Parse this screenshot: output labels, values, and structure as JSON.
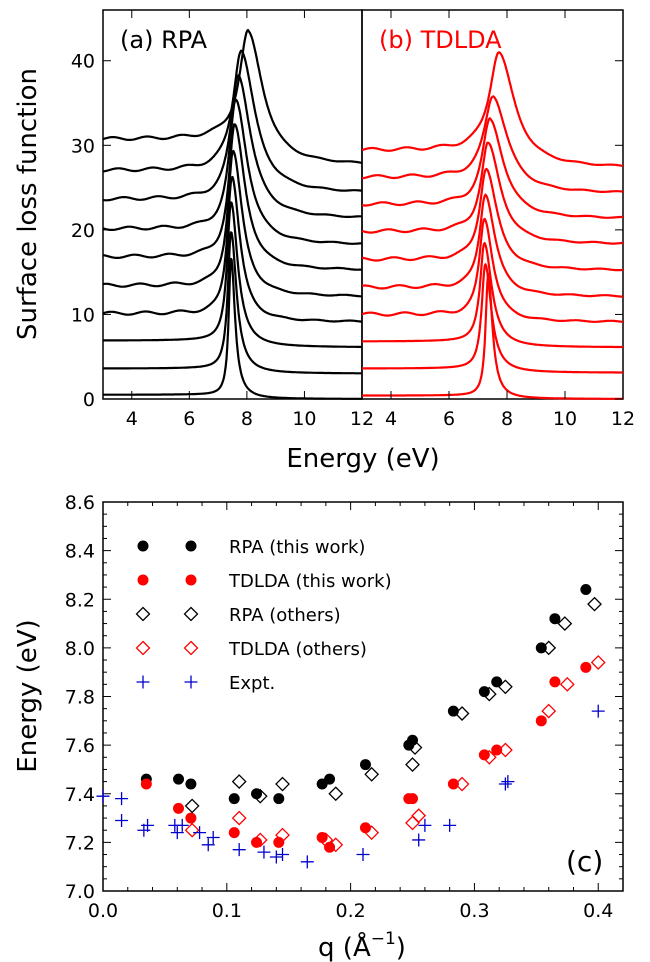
{
  "top_xlabel": "Energy (eV)",
  "chart_data": [
    {
      "type": "line",
      "panel": "a",
      "label": "(a) RPA",
      "color": "#000000",
      "ylabel": "Surface loss function",
      "xlim": [
        3,
        12
      ],
      "ylim": [
        0,
        46
      ],
      "xticks": [
        4,
        6,
        8,
        10,
        12
      ],
      "yticks": [
        0,
        10,
        20,
        30,
        40
      ],
      "curves": [
        {
          "offset": 0.0,
          "peak": 7.45,
          "amp": 16.5,
          "width": 0.13,
          "base": 0.5
        },
        {
          "offset": 3.0,
          "peak": 7.45,
          "amp": 16.5,
          "width": 0.18,
          "base": 0.6
        },
        {
          "offset": 6.1,
          "peak": 7.45,
          "amp": 16.8,
          "width": 0.22,
          "base": 0.8
        },
        {
          "offset": 9.1,
          "peak": 7.48,
          "amp": 16.8,
          "width": 0.26,
          "base": 1.0
        },
        {
          "offset": 12.1,
          "peak": 7.52,
          "amp": 16.6,
          "width": 0.3,
          "base": 1.3
        },
        {
          "offset": 15.2,
          "peak": 7.58,
          "amp": 16.4,
          "width": 0.34,
          "base": 1.6
        },
        {
          "offset": 18.2,
          "peak": 7.62,
          "amp": 16.2,
          "width": 0.38,
          "base": 1.9
        },
        {
          "offset": 21.3,
          "peak": 7.7,
          "amp": 15.9,
          "width": 0.42,
          "base": 2.3
        },
        {
          "offset": 24.3,
          "peak": 7.8,
          "amp": 15.6,
          "width": 0.46,
          "base": 2.7
        },
        {
          "offset": 27.6,
          "peak": 8.05,
          "amp": 14.3,
          "width": 0.5,
          "base": 3.1
        }
      ]
    },
    {
      "type": "line",
      "panel": "b",
      "label": "(b) TDLDA",
      "color": "#ff0000",
      "xlim": [
        3,
        12
      ],
      "ylim": [
        0,
        46
      ],
      "xticks": [
        4,
        6,
        8,
        10,
        12
      ],
      "curves": [
        {
          "offset": 0.0,
          "peak": 7.35,
          "amp": 14.6,
          "width": 0.14,
          "base": 0.4
        },
        {
          "offset": 3.1,
          "peak": 7.25,
          "amp": 12.6,
          "width": 0.2,
          "base": 0.5
        },
        {
          "offset": 6.1,
          "peak": 7.22,
          "amp": 12.0,
          "width": 0.24,
          "base": 0.7
        },
        {
          "offset": 9.1,
          "peak": 7.22,
          "amp": 11.8,
          "width": 0.28,
          "base": 0.9
        },
        {
          "offset": 12.1,
          "peak": 7.25,
          "amp": 11.6,
          "width": 0.32,
          "base": 1.1
        },
        {
          "offset": 15.2,
          "peak": 7.28,
          "amp": 11.4,
          "width": 0.36,
          "base": 1.3
        },
        {
          "offset": 18.3,
          "peak": 7.35,
          "amp": 11.2,
          "width": 0.4,
          "base": 1.5
        },
        {
          "offset": 21.3,
          "peak": 7.42,
          "amp": 10.9,
          "width": 0.44,
          "base": 1.7
        },
        {
          "offset": 24.3,
          "peak": 7.52,
          "amp": 10.6,
          "width": 0.48,
          "base": 1.9
        },
        {
          "offset": 27.3,
          "peak": 7.72,
          "amp": 12.7,
          "width": 0.52,
          "base": 2.1
        }
      ]
    },
    {
      "type": "scatter",
      "panel": "c",
      "label": "(c)",
      "xlabel": "q (Å",
      "xlabel_sup": "−1",
      "xlabel_close": ")",
      "ylabel": "Energy (eV)",
      "xlim": [
        0.0,
        0.42
      ],
      "ylim": [
        7.0,
        8.6
      ],
      "xticks": [
        0.0,
        0.1,
        0.2,
        0.3,
        0.4
      ],
      "xtick_labels": [
        "0.0",
        "0.1",
        "0.2",
        "0.3",
        "0.4"
      ],
      "yticks": [
        7.0,
        7.2,
        7.4,
        7.6,
        7.8,
        8.0,
        8.2,
        8.4,
        8.6
      ],
      "ytick_labels": [
        "7.0",
        "7.2",
        "7.4",
        "7.6",
        "7.8",
        "8.0",
        "8.2",
        "8.4",
        "8.6"
      ],
      "legend_position": "top-left",
      "series": [
        {
          "name": "RPA (this work)",
          "marker": "filled-circle",
          "color": "#000000",
          "points": [
            [
              0.035,
              7.46
            ],
            [
              0.061,
              7.46
            ],
            [
              0.071,
              7.44
            ],
            [
              0.106,
              7.38
            ],
            [
              0.124,
              7.4
            ],
            [
              0.142,
              7.38
            ],
            [
              0.177,
              7.44
            ],
            [
              0.183,
              7.46
            ],
            [
              0.212,
              7.52
            ],
            [
              0.247,
              7.6
            ],
            [
              0.25,
              7.62
            ],
            [
              0.283,
              7.74
            ],
            [
              0.308,
              7.82
            ],
            [
              0.318,
              7.86
            ],
            [
              0.354,
              8.0
            ],
            [
              0.365,
              8.12
            ],
            [
              0.39,
              8.24
            ]
          ]
        },
        {
          "name": "TDLDA (this work)",
          "marker": "filled-circle",
          "color": "#ff0000",
          "points": [
            [
              0.035,
              7.44
            ],
            [
              0.061,
              7.34
            ],
            [
              0.071,
              7.3
            ],
            [
              0.106,
              7.24
            ],
            [
              0.124,
              7.2
            ],
            [
              0.142,
              7.2
            ],
            [
              0.177,
              7.22
            ],
            [
              0.183,
              7.18
            ],
            [
              0.212,
              7.26
            ],
            [
              0.247,
              7.38
            ],
            [
              0.25,
              7.38
            ],
            [
              0.283,
              7.44
            ],
            [
              0.308,
              7.56
            ],
            [
              0.318,
              7.58
            ],
            [
              0.354,
              7.7
            ],
            [
              0.365,
              7.86
            ],
            [
              0.39,
              7.92
            ]
          ]
        },
        {
          "name": "RPA (others)",
          "marker": "open-diamond",
          "color": "#000000",
          "points": [
            [
              0.072,
              7.35
            ],
            [
              0.11,
              7.45
            ],
            [
              0.127,
              7.39
            ],
            [
              0.145,
              7.44
            ],
            [
              0.188,
              7.4
            ],
            [
              0.217,
              7.48
            ],
            [
              0.25,
              7.52
            ],
            [
              0.252,
              7.59
            ],
            [
              0.29,
              7.73
            ],
            [
              0.312,
              7.81
            ],
            [
              0.325,
              7.84
            ],
            [
              0.36,
              8.0
            ],
            [
              0.373,
              8.1
            ],
            [
              0.397,
              8.18
            ]
          ]
        },
        {
          "name": "TDLDA (others)",
          "marker": "open-diamond",
          "color": "#ff0000",
          "points": [
            [
              0.072,
              7.25
            ],
            [
              0.11,
              7.3
            ],
            [
              0.127,
              7.21
            ],
            [
              0.145,
              7.23
            ],
            [
              0.18,
              7.21
            ],
            [
              0.188,
              7.19
            ],
            [
              0.217,
              7.24
            ],
            [
              0.25,
              7.28
            ],
            [
              0.255,
              7.31
            ],
            [
              0.29,
              7.44
            ],
            [
              0.312,
              7.55
            ],
            [
              0.325,
              7.58
            ],
            [
              0.36,
              7.74
            ],
            [
              0.375,
              7.85
            ],
            [
              0.4,
              7.94
            ]
          ]
        },
        {
          "name": "Expt.",
          "marker": "plus",
          "color": "#0000cc",
          "points": [
            [
              0.0,
              7.39
            ],
            [
              0.015,
              7.38
            ],
            [
              0.015,
              7.29
            ],
            [
              0.033,
              7.25
            ],
            [
              0.036,
              7.27
            ],
            [
              0.058,
              7.27
            ],
            [
              0.06,
              7.24
            ],
            [
              0.064,
              7.27
            ],
            [
              0.078,
              7.24
            ],
            [
              0.085,
              7.19
            ],
            [
              0.089,
              7.22
            ],
            [
              0.11,
              7.17
            ],
            [
              0.13,
              7.16
            ],
            [
              0.14,
              7.14
            ],
            [
              0.145,
              7.15
            ],
            [
              0.165,
              7.12
            ],
            [
              0.21,
              7.15
            ],
            [
              0.255,
              7.21
            ],
            [
              0.26,
              7.27
            ],
            [
              0.28,
              7.27
            ],
            [
              0.325,
              7.44
            ],
            [
              0.327,
              7.45
            ],
            [
              0.4,
              7.74
            ]
          ]
        }
      ]
    }
  ]
}
